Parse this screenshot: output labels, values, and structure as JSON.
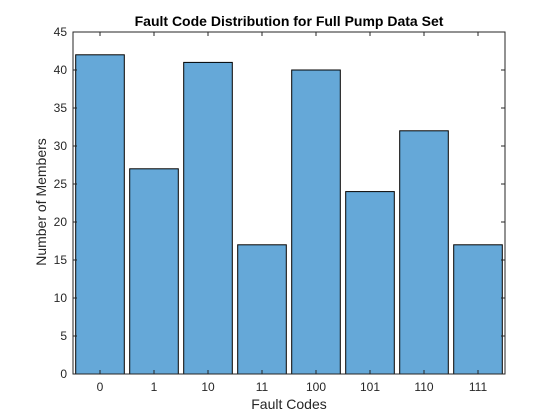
{
  "chart_data": {
    "type": "bar",
    "title": "Fault Code Distribution for Full Pump Data Set",
    "xlabel": "Fault Codes",
    "ylabel": "Number of Members",
    "categories": [
      "0",
      "1",
      "10",
      "11",
      "100",
      "101",
      "110",
      "111"
    ],
    "values": [
      42,
      27,
      41,
      17,
      40,
      24,
      32,
      17
    ],
    "ylim": [
      0,
      45
    ],
    "yticks": [
      0,
      5,
      10,
      15,
      20,
      25,
      30,
      35,
      40,
      45
    ],
    "grid": false,
    "legend": "none",
    "bar_color": "#65a8d8"
  }
}
